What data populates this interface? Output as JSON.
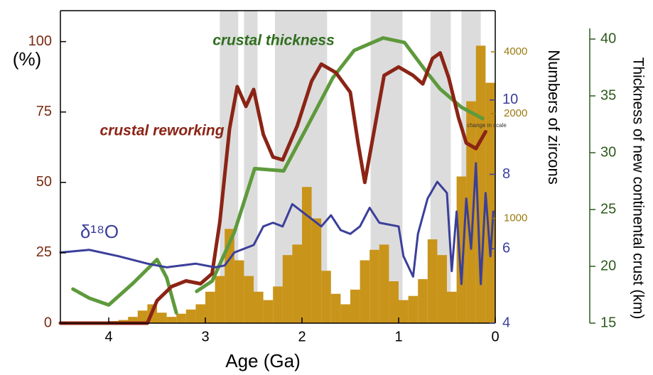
{
  "chart_data": {
    "type": "line",
    "xlabel": "Age (Ga)",
    "ylabel": "(%)",
    "y2label": "Numbers of zircons",
    "y3label": "Thickness of new continental crust (km)",
    "xlim": [
      4.5,
      0
    ],
    "xticks": [
      4,
      3,
      2,
      1,
      0
    ],
    "ylim": [
      0,
      111
    ],
    "yticks": [
      0,
      25,
      50,
      75,
      100
    ],
    "y2lim": [
      4,
      12.4
    ],
    "y2ticks": [
      4,
      6,
      8,
      10
    ],
    "y3lim": [
      15,
      42.5
    ],
    "y3ticks": [
      15,
      20,
      25,
      30,
      35,
      40
    ],
    "zircon_ticks": [
      1000,
      2000,
      4000
    ],
    "scale_change": {
      "value": 2000,
      "label": "change in scale"
    },
    "shaded_periods": [
      [
        2.85,
        2.66
      ],
      [
        2.6,
        2.46
      ],
      [
        2.28,
        1.74
      ],
      [
        1.29,
        0.96
      ],
      [
        0.67,
        0.46
      ],
      [
        0.35,
        0.15
      ]
    ],
    "histogram": {
      "color": "#c9941a",
      "bins": [
        4.0,
        3.9,
        3.8,
        3.7,
        3.6,
        3.5,
        3.4,
        3.3,
        3.2,
        3.1,
        3.0,
        2.9,
        2.8,
        2.7,
        2.6,
        2.5,
        2.4,
        2.3,
        2.2,
        2.1,
        2.0,
        1.9,
        1.8,
        1.7,
        1.6,
        1.5,
        1.4,
        1.3,
        1.2,
        1.1,
        1.0,
        0.9,
        0.8,
        0.7,
        0.6,
        0.5,
        0.4,
        0.3,
        0.2,
        0.1,
        0.0
      ],
      "counts": [
        20,
        30,
        60,
        120,
        180,
        100,
        60,
        90,
        130,
        180,
        300,
        450,
        900,
        600,
        450,
        300,
        220,
        350,
        650,
        750,
        1300,
        1000,
        500,
        280,
        180,
        320,
        600,
        700,
        750,
        400,
        220,
        260,
        420,
        800,
        650,
        300,
        1400,
        2400,
        4200,
        3000
      ]
    },
    "series": [
      {
        "name": "crustal thickness",
        "color": "#5e9a3c",
        "axis": "y3",
        "x": [
          4.37,
          4.2,
          4.0,
          3.75,
          3.5,
          3.4,
          3.3,
          3.2,
          3.09,
          2.93,
          2.7,
          2.49,
          2.19,
          1.97,
          1.68,
          1.46,
          1.16,
          0.94,
          0.72,
          0.57,
          0.35,
          0.13
        ],
        "values": [
          18.0,
          17.2,
          16.6,
          18.5,
          20.6,
          19.0,
          15.9,
          null,
          17.8,
          18.7,
          23.0,
          28.6,
          28.4,
          31.9,
          36.6,
          39.0,
          40.1,
          39.7,
          37.2,
          35.6,
          34.0,
          33.0
        ]
      },
      {
        "name": "crustal reworking",
        "color": "#8b2415",
        "axis": "y",
        "x": [
          4.5,
          3.6,
          3.5,
          3.35,
          3.2,
          3.05,
          2.93,
          2.85,
          2.75,
          2.67,
          2.58,
          2.5,
          2.4,
          2.3,
          2.2,
          2.05,
          1.9,
          1.8,
          1.65,
          1.5,
          1.42,
          1.35,
          1.25,
          1.15,
          1.0,
          0.85,
          0.75,
          0.65,
          0.57,
          0.48,
          0.38,
          0.3,
          0.2,
          0.1
        ],
        "values": [
          0,
          0,
          8,
          13,
          15,
          14,
          17.6,
          36,
          69,
          84,
          77,
          83,
          67,
          59,
          58,
          70,
          86,
          92,
          89,
          82,
          64,
          50,
          69,
          88,
          91,
          88,
          85,
          94,
          96,
          87,
          73,
          64,
          62,
          68
        ]
      },
      {
        "name": "δ¹⁸O",
        "color": "#3b3f9a",
        "axis": "y2",
        "x": [
          4.5,
          4.2,
          3.9,
          3.6,
          3.4,
          3.1,
          2.9,
          2.8,
          2.7,
          2.5,
          2.4,
          2.3,
          2.2,
          2.1,
          2.0,
          1.9,
          1.8,
          1.7,
          1.6,
          1.5,
          1.4,
          1.3,
          1.2,
          1.0,
          0.95,
          0.85,
          0.8,
          0.7,
          0.6,
          0.5,
          0.45,
          0.4,
          0.35,
          0.3,
          0.25,
          0.2,
          0.15,
          0.1,
          0.05,
          0.02
        ],
        "values": [
          5.9,
          5.97,
          5.8,
          5.6,
          5.5,
          5.6,
          5.5,
          5.55,
          5.9,
          6.1,
          6.6,
          6.7,
          6.6,
          7.2,
          7.0,
          6.8,
          6.6,
          6.9,
          6.5,
          6.4,
          6.6,
          7.1,
          6.7,
          6.6,
          5.8,
          5.25,
          6.4,
          7.35,
          7.8,
          7.5,
          5.4,
          7.0,
          5.05,
          7.35,
          6.0,
          8.3,
          5.05,
          7.5,
          5.8,
          7.0
        ]
      }
    ]
  }
}
